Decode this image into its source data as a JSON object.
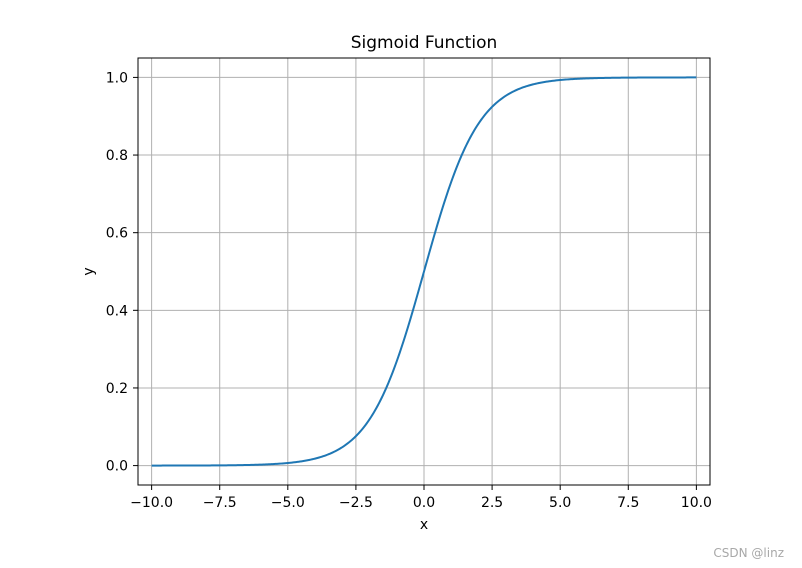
{
  "chart_data": {
    "type": "line",
    "title": "Sigmoid Function",
    "xlabel": "x",
    "ylabel": "y",
    "xlim": [
      -10.5,
      10.5
    ],
    "ylim": [
      -0.05,
      1.05
    ],
    "x_ticks": [
      -10.0,
      -7.5,
      -5.0,
      -2.5,
      0.0,
      2.5,
      5.0,
      7.5,
      10.0
    ],
    "x_tick_labels": [
      "−10.0",
      "−7.5",
      "−5.0",
      "−2.5",
      "0.0",
      "2.5",
      "5.0",
      "7.5",
      "10.0"
    ],
    "y_ticks": [
      0.0,
      0.2,
      0.4,
      0.6,
      0.8,
      1.0
    ],
    "y_tick_labels": [
      "0.0",
      "0.2",
      "0.4",
      "0.6",
      "0.8",
      "1.0"
    ],
    "grid": true,
    "line_color": "#1f77b4",
    "grid_color": "#b0b0b0",
    "series": [
      {
        "x": [
          -10.0,
          -9.0,
          -8.0,
          -7.0,
          -6.0,
          -5.0,
          -4.5,
          -4.0,
          -3.5,
          -3.0,
          -2.5,
          -2.0,
          -1.5,
          -1.0,
          -0.5,
          0.0,
          0.5,
          1.0,
          1.5,
          2.0,
          2.5,
          3.0,
          3.5,
          4.0,
          4.5,
          5.0,
          6.0,
          7.0,
          8.0,
          9.0,
          10.0
        ],
        "y": [
          0.0,
          0.0001,
          0.0003,
          0.0009,
          0.0025,
          0.0067,
          0.011,
          0.018,
          0.0293,
          0.0474,
          0.0759,
          0.1192,
          0.1824,
          0.2689,
          0.3775,
          0.5,
          0.6225,
          0.7311,
          0.8176,
          0.8808,
          0.9241,
          0.9526,
          0.9707,
          0.982,
          0.989,
          0.9933,
          0.9975,
          0.9991,
          0.9997,
          0.9999,
          1.0
        ]
      }
    ]
  },
  "watermark": "CSDN @linz"
}
